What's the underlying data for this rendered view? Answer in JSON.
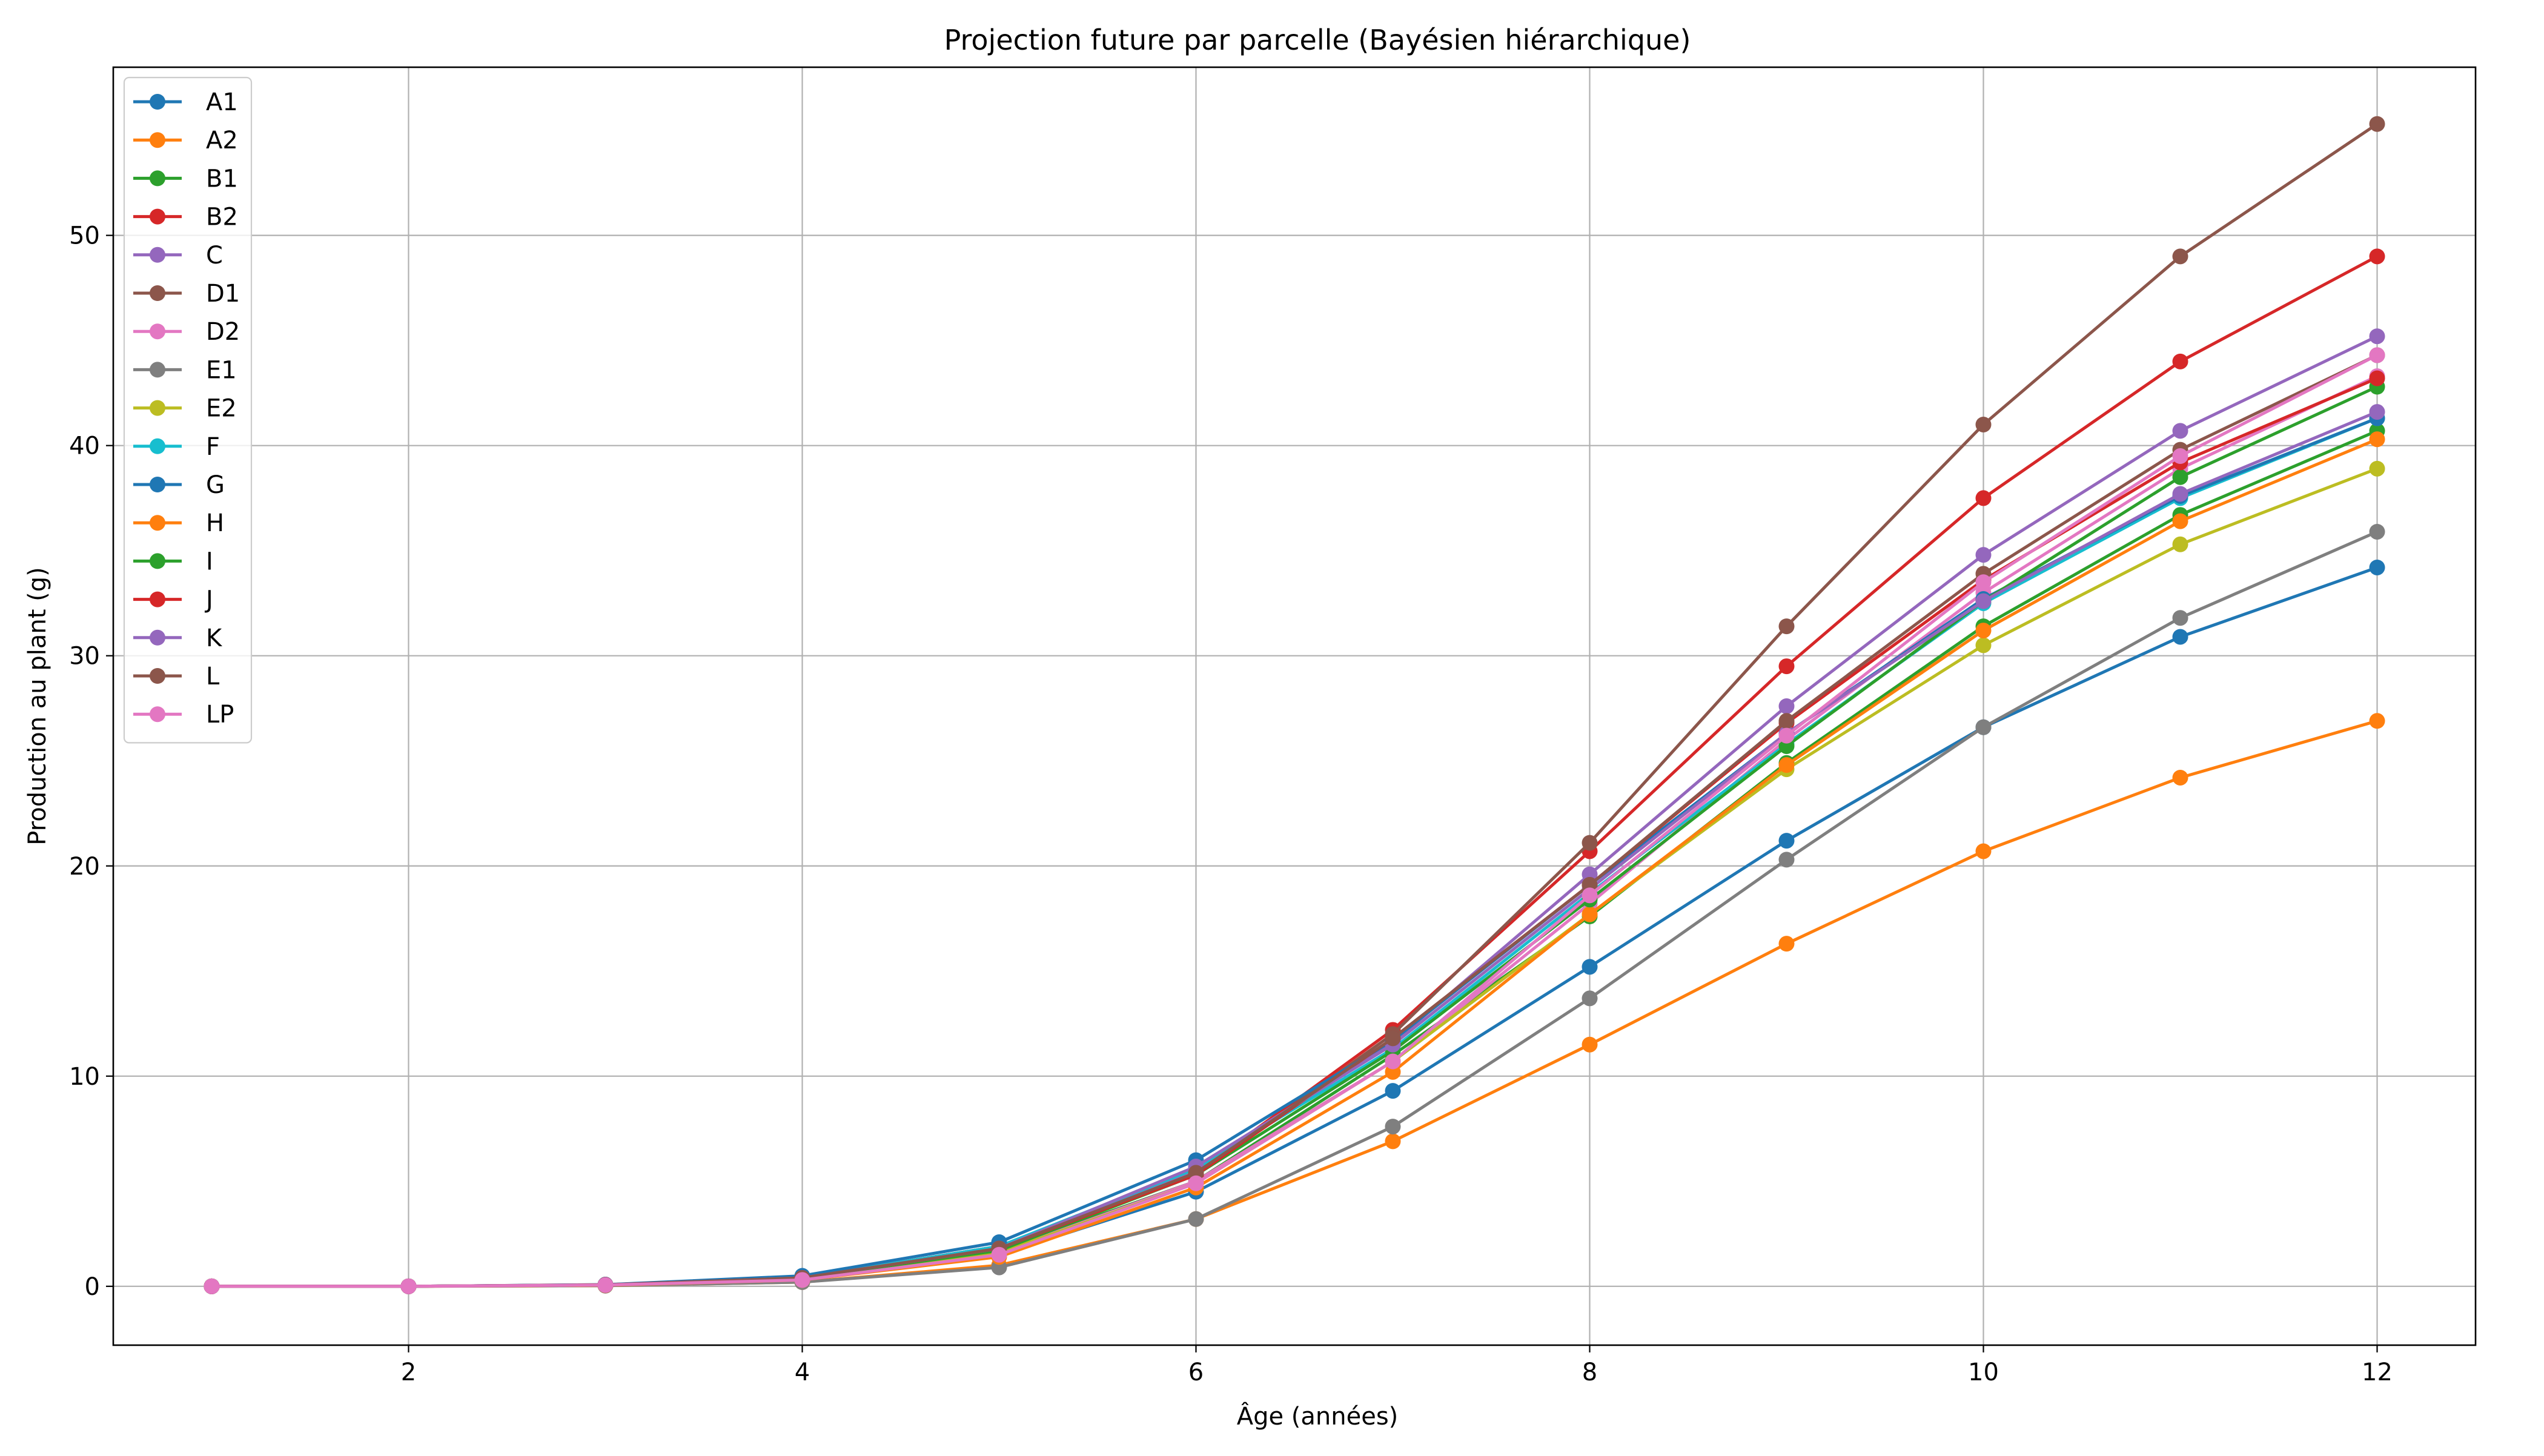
{
  "chart_data": {
    "type": "line",
    "title": "Projection future par parcelle (Bayésien hiérarchique)",
    "xlabel": "Âge (années)",
    "ylabel": "Production au plant (g)",
    "xlim": [
      0.5,
      12.5
    ],
    "ylim": [
      -2.8,
      58.0
    ],
    "xticks": [
      2,
      4,
      6,
      8,
      10,
      12
    ],
    "yticks": [
      0,
      10,
      20,
      30,
      40,
      50
    ],
    "grid": true,
    "legend_position": "upper left",
    "x": [
      1,
      2,
      3,
      4,
      5,
      6,
      7,
      8,
      9,
      10,
      11,
      12
    ],
    "series": [
      {
        "name": "A1",
        "color": "#1f77b4",
        "values": [
          0,
          0,
          0.05,
          0.3,
          1.5,
          4.5,
          9.3,
          15.2,
          21.2,
          26.6,
          30.9,
          34.2
        ]
      },
      {
        "name": "A2",
        "color": "#ff7f0e",
        "values": [
          0,
          0,
          0.03,
          0.2,
          1.0,
          3.2,
          6.9,
          11.5,
          16.3,
          20.7,
          24.2,
          26.9
        ]
      },
      {
        "name": "B1",
        "color": "#2ca02c",
        "values": [
          0,
          0,
          0.06,
          0.4,
          1.7,
          5.0,
          11.0,
          17.6,
          24.9,
          31.4,
          36.7,
          40.7
        ]
      },
      {
        "name": "B2",
        "color": "#d62728",
        "values": [
          0,
          0,
          0.07,
          0.4,
          1.9,
          5.4,
          12.2,
          20.7,
          29.5,
          37.5,
          44.0,
          49.0
        ]
      },
      {
        "name": "C",
        "color": "#9467bd",
        "values": [
          0,
          0,
          0.07,
          0.4,
          1.9,
          5.5,
          11.6,
          19.6,
          27.6,
          34.8,
          40.7,
          45.2
        ]
      },
      {
        "name": "D1",
        "color": "#8c564b",
        "values": [
          0,
          0,
          0.08,
          0.4,
          1.9,
          5.3,
          12.0,
          21.1,
          31.4,
          41.0,
          49.0,
          55.3
        ]
      },
      {
        "name": "D2",
        "color": "#e377c2",
        "values": [
          0,
          0,
          0.06,
          0.3,
          1.6,
          5.0,
          10.7,
          18.2,
          26.0,
          33.0,
          38.9,
          43.3
        ]
      },
      {
        "name": "E1",
        "color": "#7f7f7f",
        "values": [
          0,
          0,
          0.03,
          0.2,
          0.9,
          3.2,
          7.6,
          13.7,
          20.3,
          26.6,
          31.8,
          35.9
        ]
      },
      {
        "name": "E2",
        "color": "#bcbd22",
        "values": [
          0,
          0,
          0.06,
          0.3,
          1.6,
          4.9,
          10.7,
          17.7,
          24.6,
          30.5,
          35.3,
          38.9
        ]
      },
      {
        "name": "F",
        "color": "#17becf",
        "values": [
          0,
          0,
          0.07,
          0.4,
          1.9,
          5.6,
          11.3,
          18.7,
          25.8,
          32.5,
          37.5,
          41.3
        ]
      },
      {
        "name": "G",
        "color": "#1f77b4",
        "values": [
          0,
          0,
          0.08,
          0.5,
          2.1,
          6.0,
          11.7,
          19.1,
          26.3,
          32.7,
          37.6,
          41.3
        ]
      },
      {
        "name": "H",
        "color": "#ff7f0e",
        "values": [
          0,
          0,
          0.05,
          0.3,
          1.4,
          4.7,
          10.2,
          17.7,
          24.8,
          31.2,
          36.4,
          40.3
        ]
      },
      {
        "name": "I",
        "color": "#2ca02c",
        "values": [
          0,
          0,
          0.06,
          0.4,
          1.7,
          5.3,
          11.2,
          18.4,
          25.7,
          32.6,
          38.5,
          42.8
        ]
      },
      {
        "name": "J",
        "color": "#d62728",
        "values": [
          0,
          0,
          0.07,
          0.4,
          1.8,
          5.3,
          11.8,
          19.1,
          26.8,
          33.6,
          39.2,
          43.2
        ]
      },
      {
        "name": "K",
        "color": "#9467bd",
        "values": [
          0,
          0,
          0.06,
          0.4,
          1.8,
          5.7,
          11.5,
          18.9,
          26.3,
          32.6,
          37.7,
          41.6
        ]
      },
      {
        "name": "L",
        "color": "#8c564b",
        "values": [
          0,
          0,
          0.06,
          0.4,
          1.8,
          5.4,
          11.8,
          19.1,
          26.9,
          33.9,
          39.8,
          44.3
        ]
      },
      {
        "name": "LP",
        "color": "#e377c2",
        "values": [
          0,
          0,
          0.06,
          0.3,
          1.5,
          4.9,
          10.7,
          18.6,
          26.2,
          33.5,
          39.5,
          44.3
        ]
      }
    ]
  }
}
